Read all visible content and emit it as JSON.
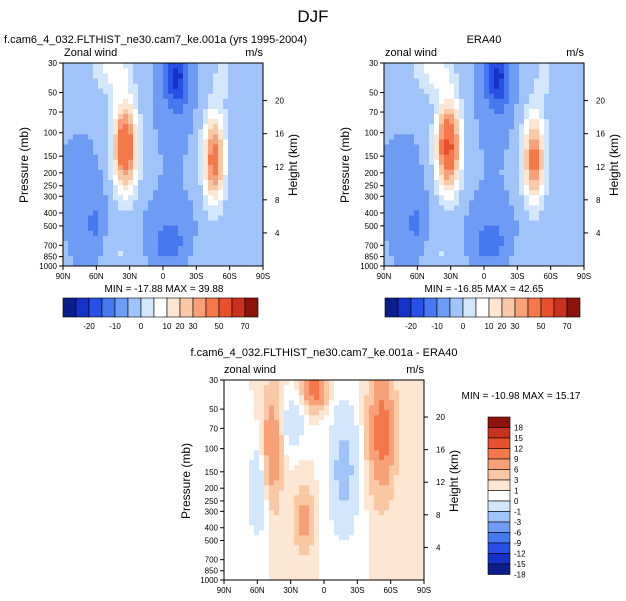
{
  "page_title": "DJF",
  "colors": {
    "model_scale": [
      "#0a1e8c",
      "#1432c8",
      "#2850e6",
      "#4678f0",
      "#6e9cf5",
      "#a0c3fa",
      "#d2e6fc",
      "#ffffff",
      "#fde6d2",
      "#fbc8a5",
      "#f8a078",
      "#f5784b",
      "#e6502d",
      "#c8321e",
      "#8c140a"
    ],
    "diff_scale": [
      "#0a1e8c",
      "#1432c8",
      "#2850e6",
      "#4678f0",
      "#6e9cf5",
      "#a0c3fa",
      "#d2e6fc",
      "#ffffff",
      "#fde6d2",
      "#fbc8a5",
      "#f8a078",
      "#f5784b",
      "#e6502d",
      "#c8321e",
      "#8c140a"
    ]
  },
  "chart_data": [
    {
      "type": "heatmap",
      "title": "f.cam6_4_032.FLTHIST_ne30.cam7_ke.001a (yrs 1995-2004)",
      "left_label": "Zonal wind",
      "right_label": "m/s",
      "ylabel": "Pressure (mb)",
      "ylabel_right": "Height (km)",
      "x_ticks": [
        "90N",
        "60N",
        "30N",
        "0",
        "30S",
        "60S",
        "90S"
      ],
      "y_ticks": [
        "30",
        "50",
        "70",
        "100",
        "150",
        "200",
        "250",
        "300",
        "400",
        "500",
        "700",
        "850",
        "1000"
      ],
      "y_ticks_right": [
        "20",
        "16",
        "12",
        "8",
        "4"
      ],
      "stats": "MIN = -17.88   MAX = 39.88",
      "colorbar_labels": [
        "-20",
        "-10",
        "0",
        "10",
        "20",
        "30",
        "50",
        "70"
      ],
      "jets": [
        {
          "lat": 34,
          "pressure": 200,
          "max_ms": 39.88
        },
        {
          "lat": -46,
          "pressure": 250,
          "max_ms": 34
        }
      ],
      "min_ms": -17.88
    },
    {
      "type": "heatmap",
      "title": "ERA40",
      "left_label": "zonal wind",
      "right_label": "m/s",
      "ylabel": "Pressure (mb)",
      "ylabel_right": "Height (km)",
      "x_ticks": [
        "90N",
        "60N",
        "30N",
        "0",
        "30S",
        "60S",
        "90S"
      ],
      "y_ticks": [
        "30",
        "50",
        "70",
        "100",
        "150",
        "200",
        "250",
        "300",
        "400",
        "500",
        "700",
        "850",
        "1000"
      ],
      "y_ticks_right": [
        "20",
        "16",
        "12",
        "8",
        "4"
      ],
      "stats": "MIN = -16.85   MAX =  42.65",
      "colorbar_labels": [
        "-20",
        "-10",
        "0",
        "10",
        "20",
        "30",
        "50",
        "70"
      ],
      "jets": [
        {
          "lat": 32,
          "pressure": 200,
          "max_ms": 42.65
        },
        {
          "lat": -45,
          "pressure": 250,
          "max_ms": 33
        }
      ],
      "min_ms": -16.85
    },
    {
      "type": "heatmap",
      "title": "f.cam6_4_032.FLTHIST_ne30.cam7_ke.001a - ERA40",
      "left_label": "zonal wind",
      "right_label": "m/s",
      "ylabel": "Pressure (mb)",
      "ylabel_right": "Height (km)",
      "x_ticks": [
        "90N",
        "60N",
        "30N",
        "0",
        "30S",
        "60S",
        "90S"
      ],
      "y_ticks": [
        "30",
        "50",
        "70",
        "100",
        "150",
        "200",
        "250",
        "300",
        "400",
        "500",
        "700",
        "850",
        "1000"
      ],
      "y_ticks_right": [
        "20",
        "16",
        "12",
        "8",
        "4"
      ],
      "stats": "MIN = -10.98   MAX =  15.17",
      "colorbar_labels": [
        "18",
        "15",
        "12",
        "9",
        "6",
        "3",
        "1",
        "0",
        "-1",
        "-3",
        "-6",
        "-9",
        "-12",
        "-15",
        "-18"
      ]
    }
  ]
}
